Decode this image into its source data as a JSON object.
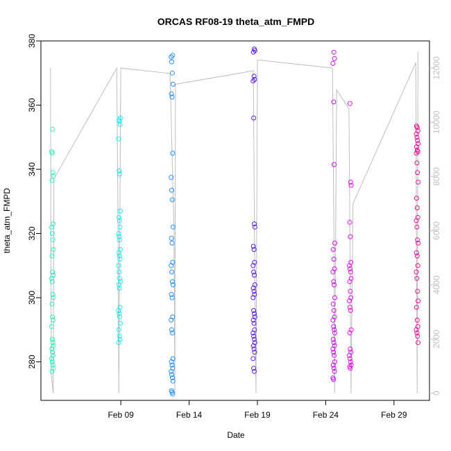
{
  "chart_data": {
    "type": "scatter",
    "title": "ORCAS RF08-19 theta_atm_FMPD",
    "xlabel": "Date",
    "ylabel": "theta_atm_FMPD",
    "ylim": [
      268,
      380
    ],
    "y_ticks": [
      280,
      300,
      320,
      340,
      360,
      380
    ],
    "right_axis": {
      "ylim": [
        -260,
        13000
      ],
      "ticks": [
        0,
        2000,
        4000,
        6000,
        8000,
        10000,
        12000
      ],
      "color": "#bebebe"
    },
    "xlim_days": [
      3.15,
      31.6
    ],
    "x_ticks": [
      {
        "day": 9,
        "label": "Feb 09"
      },
      {
        "day": 14,
        "label": "Feb 14"
      },
      {
        "day": 19,
        "label": "Feb 19"
      },
      {
        "day": 24,
        "label": "Feb 24"
      },
      {
        "day": 29,
        "label": "Feb 29"
      }
    ],
    "grid": false,
    "series": [
      {
        "day": 4.0,
        "color": "#33EEC0",
        "values": [
          345.5,
          345,
          339,
          338,
          336.5,
          352.5,
          323,
          322,
          320,
          318,
          315,
          313,
          308,
          307,
          306,
          305,
          301,
          300,
          298,
          294,
          293,
          291,
          287,
          286,
          285,
          284,
          283,
          282,
          281,
          280,
          279,
          278,
          277
        ]
      },
      {
        "day": 8.9,
        "color": "#19EEF0",
        "values": [
          356,
          355.5,
          355,
          354,
          349.5,
          339.5,
          338.5,
          327,
          325,
          324,
          322,
          320,
          319,
          318,
          315,
          314,
          313,
          312,
          310,
          308,
          306,
          305,
          304,
          303,
          297,
          296,
          295,
          294,
          292,
          290,
          288,
          287,
          286
        ]
      },
      {
        "day": 12.75,
        "color": "#1E90FF",
        "values": [
          375.5,
          375,
          373.5,
          370,
          366.5,
          363.5,
          362.5,
          345,
          337.5,
          333.5,
          330.5,
          322,
          318.5,
          317,
          311,
          310,
          308,
          305,
          304,
          301,
          300,
          294,
          293,
          290,
          289,
          281,
          280,
          279,
          278,
          277,
          276,
          275,
          274,
          271,
          270.5,
          270
        ]
      },
      {
        "day": 18.75,
        "color": "#5A1FEE",
        "values": [
          377.5,
          377,
          376.5,
          369,
          368,
          367.5,
          356,
          323,
          322,
          316,
          315,
          311,
          310,
          308,
          307,
          304,
          303,
          302,
          301,
          300,
          296,
          295,
          294,
          293,
          292,
          290,
          289,
          288,
          287,
          286,
          285,
          284,
          283,
          281,
          278,
          277
        ]
      },
      {
        "day": 24.6,
        "color": "#D010EE",
        "values": [
          376.5,
          374.5,
          373,
          361,
          341.5,
          317,
          315,
          312,
          309,
          308,
          305,
          304,
          300,
          298,
          296,
          294,
          293,
          291,
          290,
          289,
          287,
          286,
          285,
          284,
          283,
          282,
          280,
          279,
          278,
          277,
          275,
          274.5
        ]
      },
      {
        "day": 25.8,
        "color": "#EE10EE",
        "values": [
          360.5,
          336,
          335,
          323.5,
          319,
          311,
          310,
          309,
          308,
          306,
          305,
          302,
          300,
          299,
          297,
          296,
          290,
          289,
          284,
          283,
          282,
          281,
          280,
          279,
          278.5,
          278
        ]
      },
      {
        "day": 30.7,
        "color": "#F01096",
        "values": [
          353.5,
          353,
          352,
          351,
          350,
          349,
          348,
          347,
          346,
          345.5,
          345,
          342,
          339,
          336,
          331,
          328,
          325,
          324,
          322,
          318,
          317,
          314,
          313,
          310,
          308,
          306,
          302,
          299,
          297,
          293,
          291,
          290,
          289,
          288,
          286
        ]
      }
    ],
    "flight_track": {
      "color": "#bebebe",
      "points": [
        [
          3.85,
          12000
        ],
        [
          3.9,
          750
        ],
        [
          4.05,
          0
        ],
        [
          4.1,
          7900
        ],
        [
          4.2,
          8000
        ],
        [
          8.7,
          12000
        ],
        [
          8.8,
          6000
        ],
        [
          8.85,
          0
        ],
        [
          9.0,
          12000
        ],
        [
          12.6,
          11800
        ],
        [
          12.9,
          6000
        ],
        [
          12.95,
          0
        ],
        [
          13.0,
          11400
        ],
        [
          18.7,
          11900
        ],
        [
          18.8,
          5000
        ],
        [
          18.9,
          0
        ],
        [
          19.0,
          12300
        ],
        [
          24.5,
          12000
        ],
        [
          24.6,
          6000
        ],
        [
          24.65,
          0
        ],
        [
          24.8,
          11200
        ],
        [
          25.7,
          10500
        ],
        [
          25.8,
          4000
        ],
        [
          25.85,
          0
        ],
        [
          26.0,
          7000
        ],
        [
          30.6,
          12200
        ],
        [
          30.65,
          5000
        ],
        [
          30.7,
          0
        ],
        [
          30.75,
          12600
        ]
      ]
    }
  }
}
